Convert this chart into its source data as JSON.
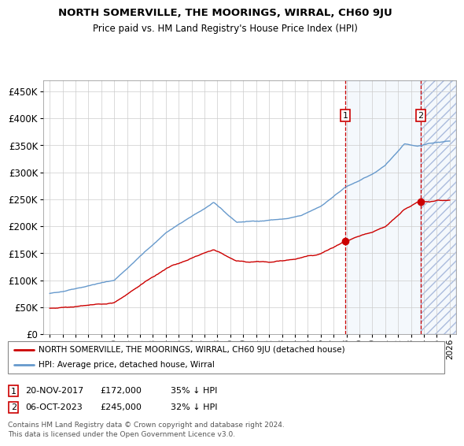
{
  "title": "NORTH SOMERVILLE, THE MOORINGS, WIRRAL, CH60 9JU",
  "subtitle": "Price paid vs. HM Land Registry's House Price Index (HPI)",
  "ylim": [
    0,
    470000
  ],
  "yticks": [
    0,
    50000,
    100000,
    150000,
    200000,
    250000,
    300000,
    350000,
    400000,
    450000
  ],
  "ytick_labels": [
    "£0",
    "£50K",
    "£100K",
    "£150K",
    "£200K",
    "£250K",
    "£300K",
    "£350K",
    "£400K",
    "£450K"
  ],
  "hpi_color": "#6699cc",
  "price_color": "#cc0000",
  "marker1_date_label": "20-NOV-2017",
  "marker1_price": 172000,
  "marker1_hpi_pct": "35% ↓ HPI",
  "marker2_date_label": "06-OCT-2023",
  "marker2_price": 245000,
  "marker2_hpi_pct": "32% ↓ HPI",
  "legend_text1": "NORTH SOMERVILLE, THE MOORINGS, WIRRAL, CH60 9JU (detached house)",
  "legend_text2": "HPI: Average price, detached house, Wirral",
  "footnote": "Contains HM Land Registry data © Crown copyright and database right 2024.\nThis data is licensed under the Open Government Licence v3.0.",
  "marker1_x": 2017.9,
  "marker2_x": 2023.75,
  "xlim_left": 1994.5,
  "xlim_right": 2026.5,
  "hatch_start": 2023.75
}
